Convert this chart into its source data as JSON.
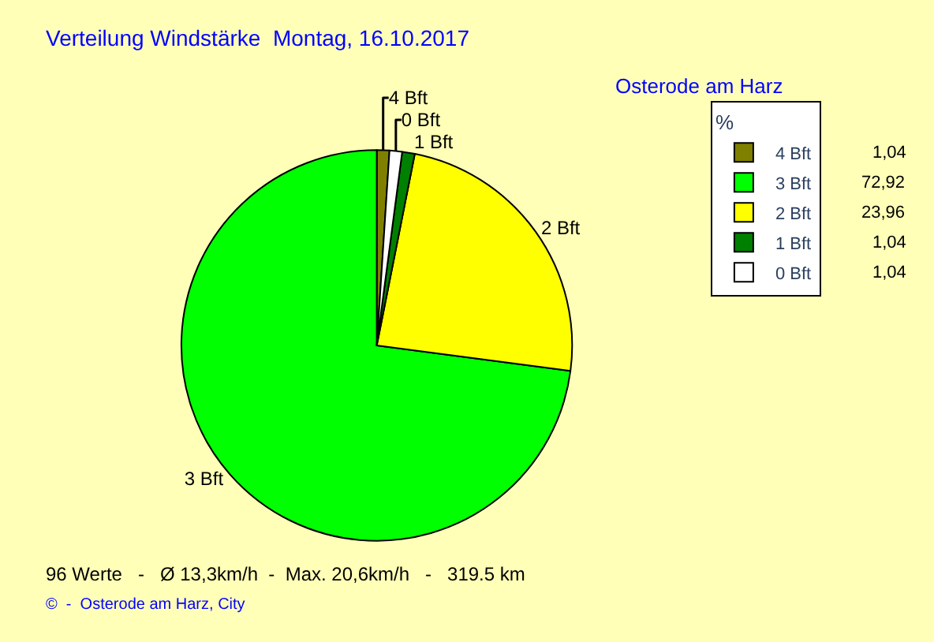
{
  "chart_data": {
    "type": "pie",
    "title": "Verteilung Windstärke  Montag, 16.10.2017",
    "subtitle": "Osterode am Harz",
    "categories": [
      "4 Bft",
      "3 Bft",
      "2 Bft",
      "1 Bft",
      "0 Bft"
    ],
    "values": [
      1.04,
      72.92,
      23.96,
      1.04,
      1.04
    ],
    "value_labels": [
      "1,04",
      "72,92",
      "23,96",
      "1,04",
      "1,04"
    ],
    "colors": [
      "#808000",
      "#00ff00",
      "#ffff00",
      "#008000",
      "#ffffff"
    ],
    "legend_title": "%",
    "legend": "top right",
    "annotations": [
      "96 Werte   -   Ø 13,3km/h  -  Max. 20,6km/h   -   319.5 km",
      "©  -  Osterode am Harz, City"
    ]
  }
}
